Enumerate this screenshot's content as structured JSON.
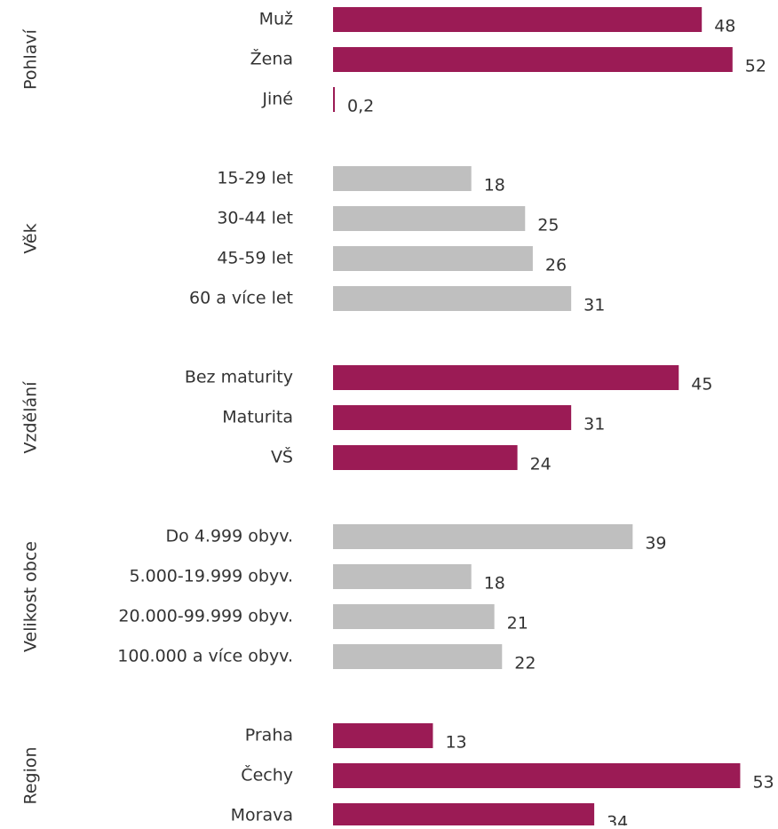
{
  "chart_data": {
    "type": "bar",
    "groups": [
      {
        "name": "Pohlaví",
        "color": "#9b1b55",
        "categories": [
          "Muž",
          "Žena",
          "Jiné"
        ],
        "values": [
          48,
          52,
          0.2
        ],
        "value_labels": [
          "48",
          "52",
          "0,2"
        ]
      },
      {
        "name": "Věk",
        "color": "#bfbfbf",
        "categories": [
          "15-29 let",
          "30-44 let",
          "45-59 let",
          "60 a více let"
        ],
        "values": [
          18,
          25,
          26,
          31
        ]
      },
      {
        "name": "Vzdělání",
        "color": "#9b1b55",
        "categories": [
          "Bez maturity",
          "Maturita",
          "VŠ"
        ],
        "values": [
          45,
          31,
          24
        ]
      },
      {
        "name": "Velikost obce",
        "color": "#bfbfbf",
        "categories": [
          "Do 4.999 obyv.",
          "5.000-19.999 obyv.",
          "20.000-99.999 obyv.",
          "100.000 a více obyv."
        ],
        "values": [
          39,
          18,
          21,
          22
        ]
      },
      {
        "name": "Region",
        "color": "#9b1b55",
        "categories": [
          "Praha",
          "Čechy",
          "Morava"
        ],
        "values": [
          13,
          53,
          34
        ]
      }
    ]
  }
}
